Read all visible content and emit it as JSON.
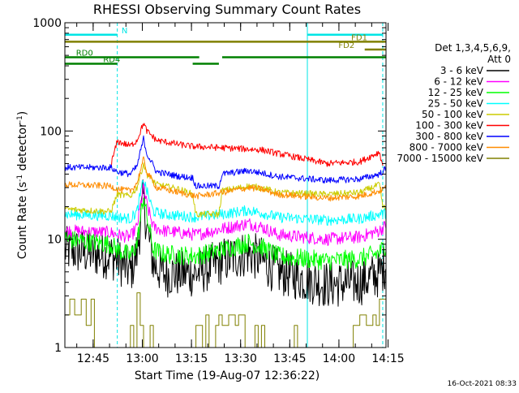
{
  "chart_data": {
    "type": "line",
    "title": "RHESSI Observing Summary Count Rates",
    "xlabel": "Start Time (19-Aug-07 12:36:22)",
    "ylabel": "Count Rate (s^-1 detector^-1)",
    "ylabel_parts": [
      "Count Rate (s",
      "-1",
      " detector",
      "-1",
      ")"
    ],
    "x_unit": "minutes since 12:36:22",
    "x_range_min": [
      0,
      98
    ],
    "ylim": [
      1,
      1000
    ],
    "yscale": "log",
    "x_ticks": [
      {
        "label": "12:45",
        "min": 8.63
      },
      {
        "label": "13:00",
        "min": 23.63
      },
      {
        "label": "13:15",
        "min": 38.63
      },
      {
        "label": "13:30",
        "min": 53.63
      },
      {
        "label": "13:45",
        "min": 68.63
      },
      {
        "label": "14:00",
        "min": 83.63
      },
      {
        "label": "14:15",
        "min": 98.63
      }
    ],
    "y_ticks": [
      {
        "label": "1",
        "v": 1
      },
      {
        "label": "10",
        "v": 10
      },
      {
        "label": "100",
        "v": 100
      },
      {
        "label": "1000",
        "v": 1000
      }
    ],
    "legend_header": [
      "Det 1,3,4,5,6,9,",
      "Att 0"
    ],
    "legend_position": "right",
    "grid": false,
    "flags": [
      {
        "label": "N",
        "color": "#00e5e5",
        "style": "solid",
        "y_level": 775,
        "segments": [
          [
            0,
            16
          ],
          [
            74,
            97
          ]
        ],
        "label_at": 17.3
      },
      {
        "label": "FD1",
        "color": "#808000",
        "style": "solid",
        "y_level": 668,
        "segments": [
          [
            0,
            98
          ]
        ],
        "label_at": 87.4
      },
      {
        "label": "FD2",
        "color": "#808000",
        "style": "solid",
        "y_level": 565,
        "segments": [
          [
            91.5,
            98
          ]
        ],
        "label_at": 83.5
      },
      {
        "label": "RD0",
        "color": "#008000",
        "style": "solid",
        "y_level": 480,
        "segments": [
          [
            0,
            41
          ],
          [
            48,
            98
          ]
        ],
        "label_at": 3.4
      },
      {
        "label": "RD4",
        "color": "#008000",
        "style": "solid",
        "y_level": 418,
        "segments": [
          [
            0,
            16
          ],
          [
            39,
            47
          ]
        ],
        "label_at": 11.7
      }
    ],
    "cyan_vlines": [
      {
        "min": 16.0,
        "style": "dashed"
      },
      {
        "min": 74.0,
        "style": "solid"
      },
      {
        "min": 97.0,
        "style": "dashed"
      }
    ],
    "series": [
      {
        "name": "3 - 6 keV",
        "color": "#000000",
        "noise": 0.22,
        "points": [
          [
            0,
            8
          ],
          [
            14,
            7
          ],
          [
            16,
            6.5
          ],
          [
            20,
            5
          ],
          [
            22,
            7.5
          ],
          [
            24,
            24
          ],
          [
            25,
            13
          ],
          [
            27,
            6
          ],
          [
            30,
            4.8
          ],
          [
            40,
            4.8
          ],
          [
            48,
            6.3
          ],
          [
            56,
            7.5
          ],
          [
            60,
            6.4
          ],
          [
            65,
            5
          ],
          [
            80,
            3.8
          ],
          [
            90,
            4
          ],
          [
            96,
            4.8
          ],
          [
            98,
            6
          ]
        ]
      },
      {
        "name": "6 - 12 keV",
        "color": "#ff00ff",
        "noise": 0.06,
        "points": [
          [
            0,
            12
          ],
          [
            14,
            11.5
          ],
          [
            16,
            11
          ],
          [
            20,
            10.5
          ],
          [
            22,
            13
          ],
          [
            24,
            30
          ],
          [
            25,
            21
          ],
          [
            27,
            13
          ],
          [
            30,
            12
          ],
          [
            40,
            11
          ],
          [
            48,
            12.5
          ],
          [
            56,
            14
          ],
          [
            60,
            13
          ],
          [
            65,
            11
          ],
          [
            80,
            10
          ],
          [
            90,
            10.5
          ],
          [
            96,
            12
          ],
          [
            98,
            13.5
          ]
        ]
      },
      {
        "name": "12 - 25 keV",
        "color": "#00ff00",
        "noise": 0.09,
        "points": [
          [
            0,
            10
          ],
          [
            14,
            9
          ],
          [
            16,
            8
          ],
          [
            20,
            7
          ],
          [
            22,
            9
          ],
          [
            24,
            25
          ],
          [
            25,
            16
          ],
          [
            27,
            8
          ],
          [
            30,
            7.3
          ],
          [
            40,
            7
          ],
          [
            48,
            8
          ],
          [
            56,
            9.3
          ],
          [
            60,
            8.5
          ],
          [
            65,
            7
          ],
          [
            80,
            6.3
          ],
          [
            90,
            6.6
          ],
          [
            96,
            7.5
          ],
          [
            98,
            9
          ]
        ]
      },
      {
        "name": "25 - 50 keV",
        "color": "#00ffff",
        "noise": 0.05,
        "points": [
          [
            0,
            17
          ],
          [
            14,
            16.5
          ],
          [
            16,
            16
          ],
          [
            20,
            15.5
          ],
          [
            22,
            18
          ],
          [
            24,
            36
          ],
          [
            25,
            28
          ],
          [
            27,
            18
          ],
          [
            30,
            17
          ],
          [
            40,
            16
          ],
          [
            48,
            17
          ],
          [
            56,
            18.5
          ],
          [
            60,
            17.5
          ],
          [
            65,
            16
          ],
          [
            80,
            15
          ],
          [
            90,
            15.5
          ],
          [
            96,
            17
          ],
          [
            98,
            17.5
          ]
        ]
      },
      {
        "name": "50 - 100 keV",
        "color": "#cccc00",
        "noise": 0.03,
        "points": [
          [
            0,
            19
          ],
          [
            14,
            18
          ],
          [
            16,
            26
          ],
          [
            20,
            25
          ],
          [
            22,
            30
          ],
          [
            24,
            50
          ],
          [
            25,
            40
          ],
          [
            28,
            32
          ],
          [
            35,
            29
          ],
          [
            39,
            26
          ],
          [
            40,
            17
          ],
          [
            47,
            17
          ],
          [
            48,
            28
          ],
          [
            56,
            31
          ],
          [
            60,
            30
          ],
          [
            65,
            27
          ],
          [
            80,
            26
          ],
          [
            90,
            27
          ],
          [
            96,
            32
          ],
          [
            97,
            20
          ],
          [
            98,
            19
          ]
        ]
      },
      {
        "name": "100 - 300 keV",
        "color": "#ff0000",
        "noise": 0.03,
        "points": [
          [
            14,
            48
          ],
          [
            16,
            80
          ],
          [
            20,
            73
          ],
          [
            22,
            82
          ],
          [
            24,
            118
          ],
          [
            25,
            100
          ],
          [
            28,
            82
          ],
          [
            35,
            75
          ],
          [
            39,
            72
          ],
          [
            48,
            70
          ],
          [
            56,
            68
          ],
          [
            60,
            67
          ],
          [
            65,
            62
          ],
          [
            80,
            50
          ],
          [
            90,
            52
          ],
          [
            96,
            64
          ],
          [
            97,
            48
          ]
        ]
      },
      {
        "name": "300 - 800 keV",
        "color": "#0000ff",
        "noise": 0.03,
        "points": [
          [
            0,
            46
          ],
          [
            14,
            46
          ],
          [
            16,
            42
          ],
          [
            20,
            40
          ],
          [
            22,
            47
          ],
          [
            24,
            85
          ],
          [
            25,
            62
          ],
          [
            28,
            42
          ],
          [
            35,
            38
          ],
          [
            39,
            37
          ],
          [
            40,
            31
          ],
          [
            47,
            31
          ],
          [
            48,
            40
          ],
          [
            56,
            43
          ],
          [
            60,
            41
          ],
          [
            65,
            38
          ],
          [
            80,
            35
          ],
          [
            90,
            36
          ],
          [
            96,
            40
          ],
          [
            98,
            45
          ]
        ]
      },
      {
        "name": "800 - 7000 keV",
        "color": "#ff8c00",
        "noise": 0.03,
        "points": [
          [
            0,
            32
          ],
          [
            14,
            31
          ],
          [
            16,
            29
          ],
          [
            20,
            28
          ],
          [
            22,
            33
          ],
          [
            24,
            55
          ],
          [
            25,
            42
          ],
          [
            28,
            30
          ],
          [
            35,
            27
          ],
          [
            40,
            25
          ],
          [
            48,
            27
          ],
          [
            56,
            30
          ],
          [
            60,
            29
          ],
          [
            65,
            26
          ],
          [
            80,
            24
          ],
          [
            90,
            25
          ],
          [
            96,
            28
          ],
          [
            98,
            30
          ]
        ]
      },
      {
        "name": "7000 - 15000 keV",
        "color": "#808000",
        "noise": 0,
        "points": [
          [
            0,
            2
          ],
          [
            1.5,
            2
          ],
          [
            1.5,
            2.8
          ],
          [
            3,
            2.8
          ],
          [
            3,
            2
          ],
          [
            5,
            2
          ],
          [
            5,
            2.8
          ],
          [
            6.5,
            2.8
          ],
          [
            6.5,
            1.6
          ],
          [
            8,
            1.6
          ],
          [
            8,
            2.8
          ],
          [
            9,
            2.8
          ],
          [
            9,
            1
          ],
          [
            20,
            1
          ],
          [
            20,
            1.6
          ],
          [
            21,
            1.6
          ],
          [
            21,
            1
          ],
          [
            22,
            1
          ],
          [
            22,
            3.2
          ],
          [
            23,
            3.2
          ],
          [
            23,
            1.6
          ],
          [
            24,
            1.6
          ],
          [
            24,
            1
          ],
          [
            26,
            1
          ],
          [
            26,
            1.6
          ],
          [
            27,
            1.6
          ],
          [
            27,
            1
          ],
          [
            40,
            1
          ],
          [
            40,
            1.6
          ],
          [
            42,
            1.6
          ],
          [
            42,
            1
          ],
          [
            43,
            1
          ],
          [
            43,
            2
          ],
          [
            44,
            2
          ],
          [
            44,
            1
          ],
          [
            46,
            1
          ],
          [
            46,
            1.6
          ],
          [
            47,
            1.6
          ],
          [
            47,
            2
          ],
          [
            48,
            2
          ],
          [
            48,
            1.6
          ],
          [
            50,
            1.6
          ],
          [
            50,
            2
          ],
          [
            52,
            2
          ],
          [
            52,
            1.6
          ],
          [
            53,
            1.6
          ],
          [
            53,
            2
          ],
          [
            55,
            2
          ],
          [
            55,
            1
          ],
          [
            58,
            1
          ],
          [
            58,
            1.6
          ],
          [
            59,
            1.6
          ],
          [
            59,
            1
          ],
          [
            60,
            1
          ],
          [
            60,
            1.6
          ],
          [
            61,
            1.6
          ],
          [
            61,
            1
          ],
          [
            70,
            1
          ],
          [
            70,
            1.6
          ],
          [
            71,
            1.6
          ],
          [
            71,
            1
          ],
          [
            88,
            1
          ],
          [
            88,
            1.6
          ],
          [
            90,
            1.6
          ],
          [
            90,
            2
          ],
          [
            92,
            2
          ],
          [
            92,
            1.6
          ],
          [
            94,
            1.6
          ],
          [
            94,
            2
          ],
          [
            95,
            2
          ],
          [
            95,
            1.6
          ],
          [
            96,
            1.6
          ],
          [
            96,
            2.8
          ],
          [
            98,
            2.8
          ]
        ]
      }
    ]
  },
  "timestamp": "16-Oct-2021 08:33"
}
